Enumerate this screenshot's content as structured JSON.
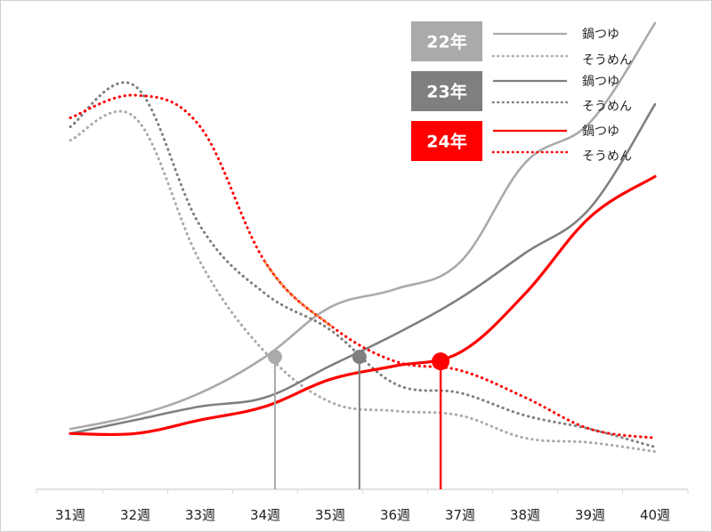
{
  "chart_data": {
    "type": "line",
    "x": [
      "31週",
      "32週",
      "33週",
      "34週",
      "35週",
      "36週",
      "37週",
      "38週",
      "39週",
      "40週"
    ],
    "ylim": [
      0,
      100
    ],
    "grid": false,
    "legend_position": "top-right",
    "colors": {
      "22年": "#aaaaaa",
      "23年": "#7f7f7f",
      "24年": "#ff0000",
      "transition": "#f07c2a"
    },
    "series": [
      {
        "name": "鍋つゆ",
        "year": "22年",
        "style": "solid",
        "values": [
          11,
          14,
          19,
          27,
          38,
          42,
          48,
          70,
          79,
          101
        ]
      },
      {
        "name": "そうめん",
        "year": "22年",
        "style": "dotted",
        "values": [
          75,
          80,
          48,
          28,
          17,
          15,
          14,
          9,
          8,
          6
        ]
      },
      {
        "name": "鍋つゆ",
        "year": "23年",
        "style": "solid",
        "values": [
          10,
          13,
          16,
          18,
          25,
          32,
          40,
          50,
          60,
          83
        ]
      },
      {
        "name": "そうめん",
        "year": "23年",
        "style": "dotted",
        "values": [
          78,
          87,
          56,
          41,
          33,
          21,
          19,
          14,
          11,
          7
        ]
      },
      {
        "name": "鍋つゆ",
        "year": "24年",
        "style": "solid",
        "values": [
          10,
          10,
          13,
          16,
          22,
          25,
          28,
          41,
          58,
          67
        ]
      },
      {
        "name": "そうめん",
        "year": "24年",
        "style": "dotted",
        "values": [
          80,
          85,
          78,
          48,
          34,
          26,
          24,
          18,
          11,
          9
        ]
      }
    ],
    "crossovers": [
      {
        "year": "22年",
        "x": 34.15,
        "y": 27
      },
      {
        "year": "23年",
        "x": 35.45,
        "y": 27
      },
      {
        "year": "24年",
        "x": 36.7,
        "y": 26
      }
    ],
    "legend": [
      {
        "year": "22年",
        "labels": [
          "鍋つゆ",
          "そうめん"
        ]
      },
      {
        "year": "23年",
        "labels": [
          "鍋つゆ",
          "そうめん"
        ]
      },
      {
        "year": "24年",
        "labels": [
          "鍋つゆ",
          "そうめん"
        ]
      }
    ]
  }
}
